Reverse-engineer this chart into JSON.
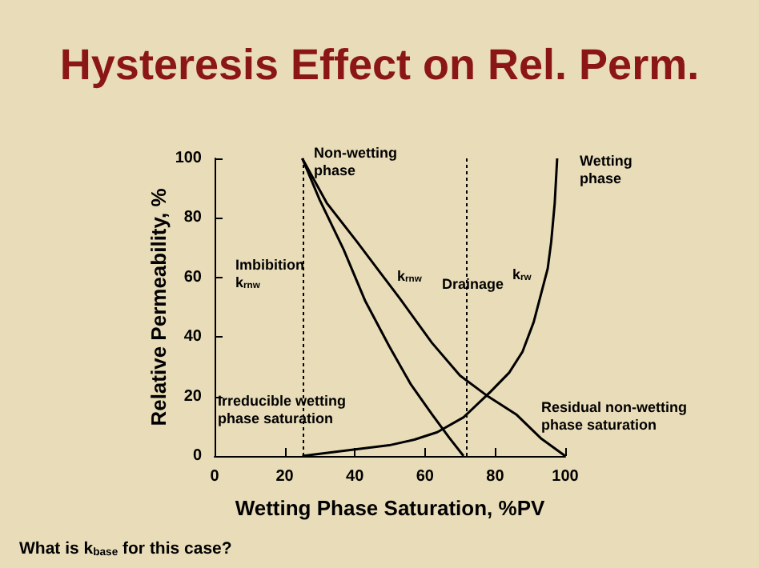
{
  "chart_data": {
    "type": "line",
    "title": "Hysteresis Effect on Rel. Perm.",
    "xlabel": "Wetting Phase Saturation, %PV",
    "ylabel": "Relative Permeability, %",
    "xlim": [
      0,
      100
    ],
    "ylim": [
      0,
      100
    ],
    "xticks": [
      0,
      20,
      40,
      60,
      80,
      100
    ],
    "yticks": [
      0,
      20,
      40,
      60,
      80,
      100
    ],
    "grid": false,
    "marker": "none",
    "line_style": "solid",
    "series": [
      {
        "color": "#000000",
        "x": [
          25,
          30,
          36.8,
          43,
          49.8,
          56,
          62,
          67,
          71
        ],
        "values": [
          100,
          86,
          69.4,
          52,
          36.9,
          24,
          14,
          6,
          0
        ]
      },
      {
        "color": "#000000",
        "x": [
          25,
          32,
          40.6,
          47,
          52.8,
          62,
          70,
          78,
          86,
          93,
          100
        ],
        "values": [
          100,
          85,
          72,
          62,
          53,
          38,
          27,
          20,
          14,
          6,
          0
        ]
      },
      {
        "color": "#000000",
        "x": [
          25,
          35,
          49.8,
          57,
          63.5,
          71,
          78.7,
          84,
          87.8,
          91,
          93,
          95,
          96,
          97,
          97.7
        ],
        "values": [
          0,
          1.5,
          3.6,
          5.5,
          8,
          13,
          21.6,
          28,
          35,
          45,
          54,
          63,
          72,
          85,
          100
        ]
      }
    ],
    "ref_lines": [
      {
        "axis": "x",
        "value": 25,
        "color": "#000000",
        "line_style": "dotted"
      },
      {
        "axis": "x",
        "value": 72,
        "color": "#000000",
        "line_style": "dotted"
      }
    ],
    "annotations": [
      "Non-wetting\nphase",
      "Wetting\nphase",
      "Imbibition\nk$_{rnw}$",
      "k$_{rnw}$",
      "Drainage",
      "k$_{rw}$",
      "Irreducible wetting\nphase saturation",
      "Residual non-wetting\nphase saturation",
      "What is k$_{base}$ for this case?"
    ]
  }
}
